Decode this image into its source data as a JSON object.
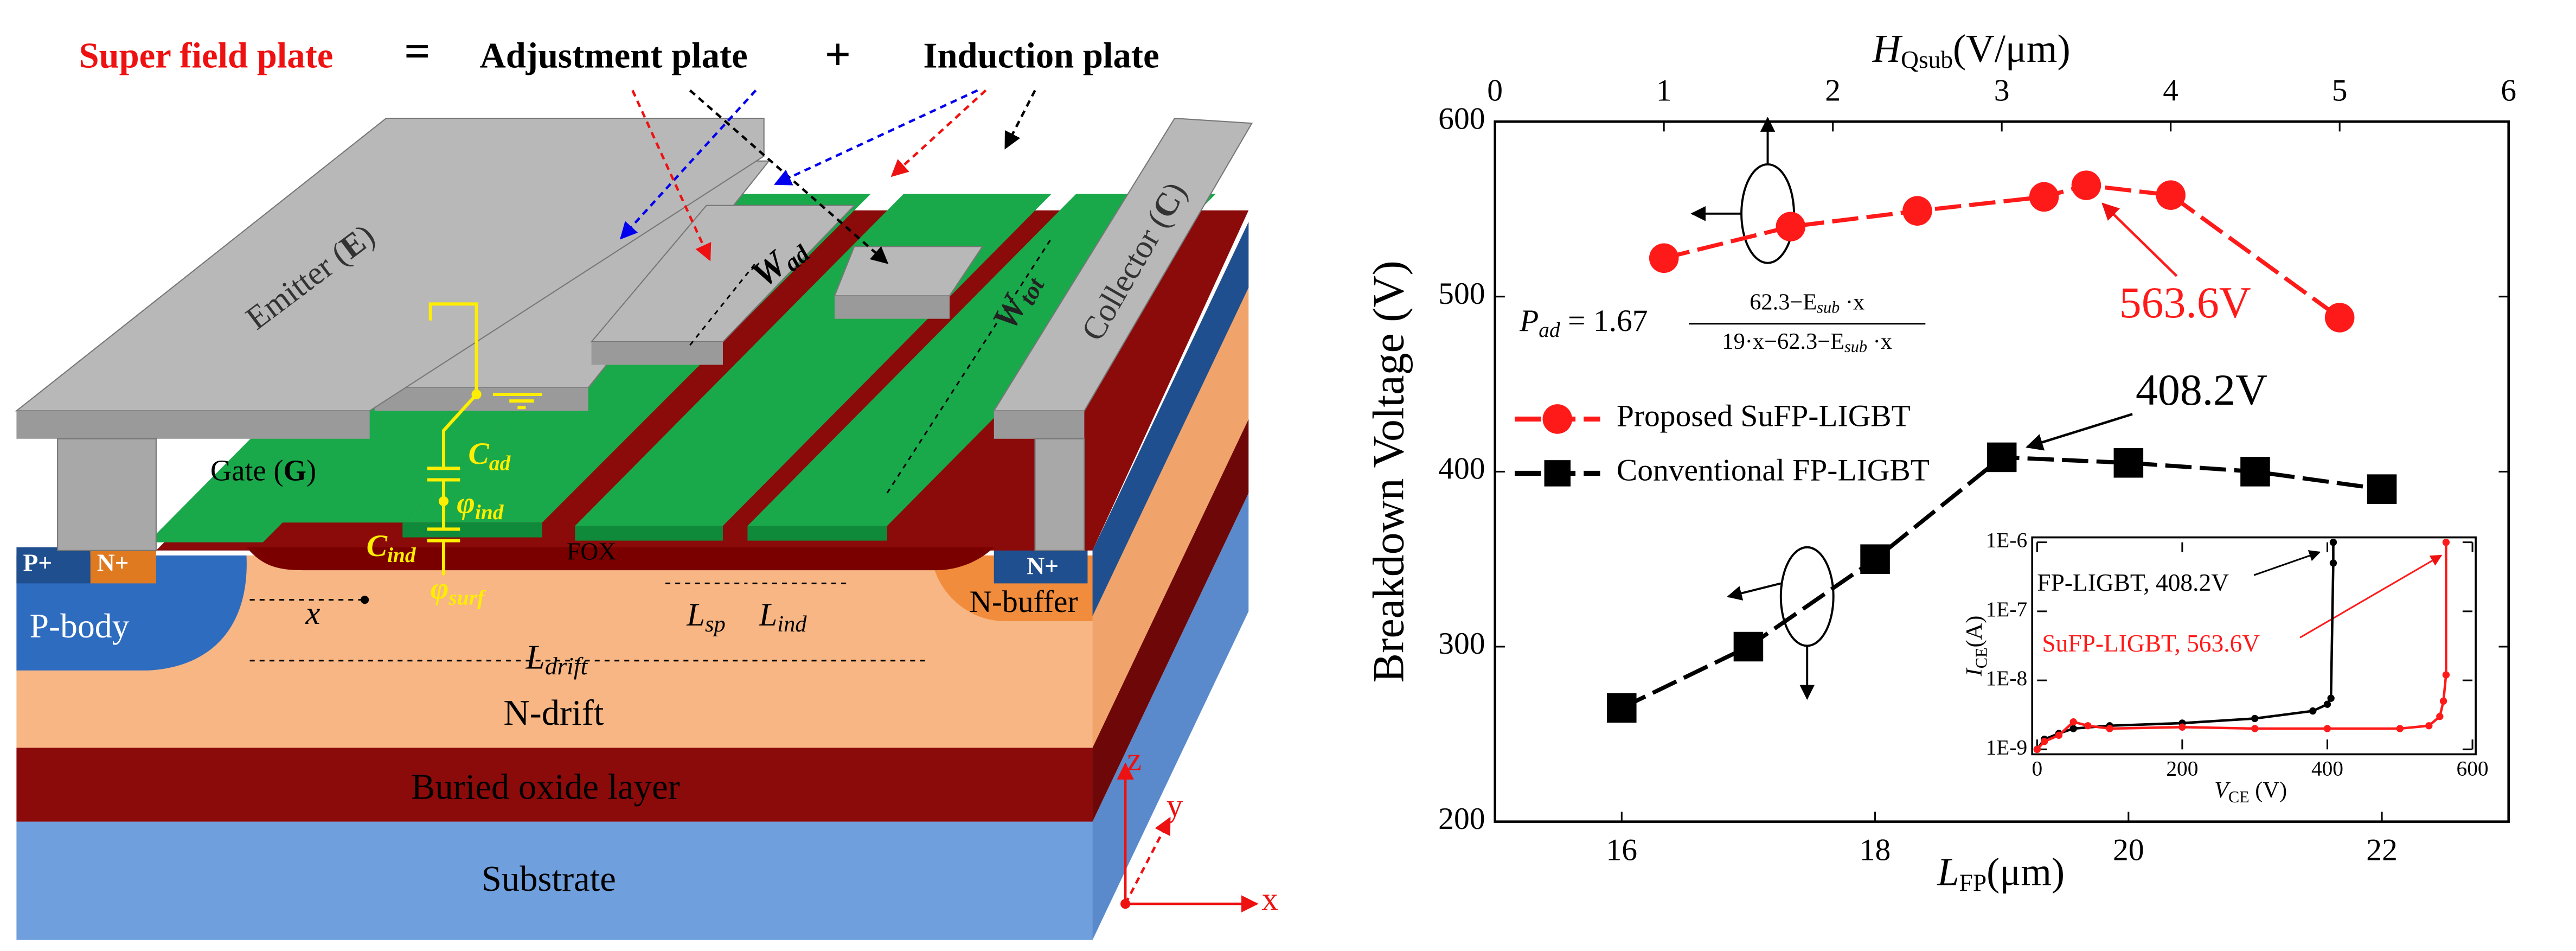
{
  "diagram": {
    "title": {
      "left": "Super field plate",
      "eq": "=",
      "mid": "Adjustment plate",
      "plus": "+",
      "right": "Induction plate"
    },
    "emitter": [
      "Emitter (",
      "E",
      ")"
    ],
    "collector": [
      "Collector (",
      "C",
      ")"
    ],
    "gate": [
      "Gate (",
      "G",
      ")"
    ],
    "w_ad": [
      "W",
      "ad"
    ],
    "w_tot": [
      "W",
      "tot"
    ],
    "c_ad": [
      "C",
      "ad"
    ],
    "phi_ind": [
      "φ",
      "ind"
    ],
    "c_ind": [
      "C",
      "ind"
    ],
    "phi_surf": [
      "φ",
      "surf"
    ],
    "fox": "FOX",
    "p_plus": "P+",
    "n_plus_left": "N+",
    "n_plus_right": "N+",
    "p_body": "P-body",
    "x_dim": "x",
    "l_sp": [
      "L",
      "sp"
    ],
    "l_ind": [
      "L",
      "ind"
    ],
    "n_buffer": "N-buffer",
    "l_drift": [
      "L",
      "drift"
    ],
    "n_drift": "N-drift",
    "box": "Buried oxide layer",
    "substrate": "Substrate",
    "axes": {
      "z": "z",
      "y": "y",
      "x": "x"
    }
  },
  "chart_data": [
    {
      "type": "line",
      "y_label": "Breakdown Voltage (V)",
      "x_label": [
        "L",
        "FP",
        "(μm)"
      ],
      "x2_label": [
        "H",
        "Qsub",
        "(V/μm)"
      ],
      "xlim": [
        15,
        23
      ],
      "xticks": [
        16,
        18,
        20,
        22
      ],
      "x2lim": [
        0,
        6
      ],
      "x2ticks": [
        0,
        1,
        2,
        3,
        4,
        5,
        6
      ],
      "ylim": [
        200,
        600
      ],
      "yticks": [
        200,
        300,
        400,
        500,
        600
      ],
      "legend": "center left",
      "series": [
        {
          "name": "Proposed SuFP-LIGBT",
          "color": "#ff1a1a",
          "marker": "circle",
          "axis": "x2",
          "x": [
            1.0,
            1.75,
            2.5,
            3.25,
            3.5,
            4.0,
            5.0
          ],
          "values": [
            522,
            540,
            549,
            557,
            563.6,
            558,
            488
          ]
        },
        {
          "name": "Conventional FP-LIGBT",
          "color": "#000000",
          "marker": "square",
          "x": [
            16,
            17,
            18,
            19,
            20,
            21,
            22
          ],
          "values": [
            265,
            300,
            350,
            408.2,
            405,
            400,
            390
          ]
        }
      ],
      "annotations": [
        {
          "text": "563.6V",
          "color": "#ff1a1a"
        },
        {
          "text": "408.2V",
          "color": "#000000"
        }
      ],
      "formula": [
        "P",
        "ad",
        " = 1.67",
        "62.3−E",
        "sub",
        " ·x",
        "19·x−62.3−E",
        "sub",
        " ·x"
      ]
    },
    {
      "type": "line",
      "x_label": [
        "V",
        "CE",
        " (V)"
      ],
      "y_label": [
        "I",
        "CE",
        "(A)"
      ],
      "xlim": [
        0,
        600
      ],
      "xticks": [
        0,
        200,
        400,
        600
      ],
      "ylim": [
        1e-09,
        1e-06
      ],
      "ylog": true,
      "yticks": [
        {
          "value": 1e-09,
          "label": "1E-9"
        },
        {
          "value": 1e-08,
          "label": "1E-8"
        },
        {
          "value": 1e-07,
          "label": "1E-7"
        },
        {
          "value": 1e-06,
          "label": "1E-6"
        }
      ],
      "series": [
        {
          "name": "FP-LIGBT, 408.2V",
          "color": "#000000",
          "x": [
            0,
            10,
            30,
            50,
            100,
            200,
            300,
            380,
            400,
            405,
            408.2,
            408.2
          ],
          "values": [
            1e-09,
            1.4e-09,
            1.7e-09,
            2e-09,
            2.2e-09,
            2.4e-09,
            2.8e-09,
            3.6e-09,
            4.5e-09,
            5.5e-09,
            5e-07,
            1e-06
          ]
        },
        {
          "name": "SuFP-LIGBT, 563.6V",
          "color": "#ff1a1a",
          "x": [
            0,
            10,
            30,
            50,
            70,
            100,
            200,
            300,
            400,
            500,
            540,
            555,
            560,
            563.6,
            563.6
          ],
          "values": [
            1e-09,
            1.3e-09,
            1.6e-09,
            2.5e-09,
            2.2e-09,
            2e-09,
            2.1e-09,
            2e-09,
            2e-09,
            2e-09,
            2.2e-09,
            3e-09,
            5e-09,
            1.2e-08,
            1e-06
          ]
        }
      ]
    }
  ]
}
